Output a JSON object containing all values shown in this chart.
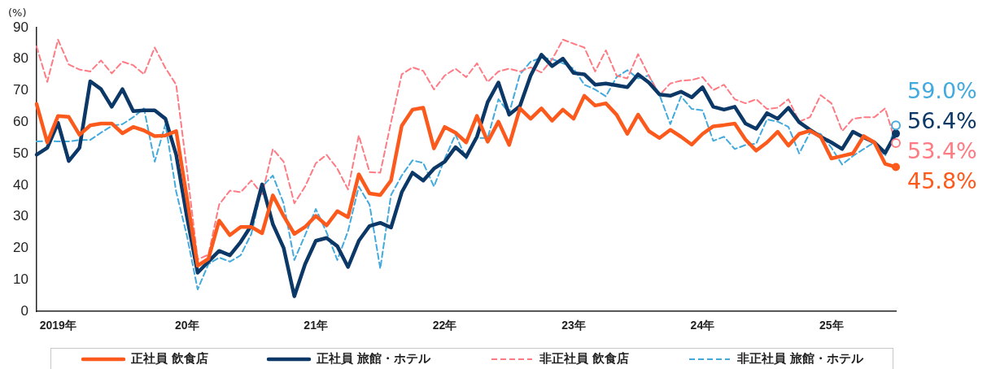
{
  "chart_data": {
    "type": "line",
    "ylabel": "(%)",
    "categories": [
      null,
      null,
      "2019年",
      null,
      null,
      null,
      null,
      null,
      null,
      null,
      null,
      null,
      null,
      null,
      "20年",
      null,
      null,
      null,
      null,
      null,
      null,
      null,
      null,
      null,
      null,
      null,
      "21年",
      null,
      null,
      null,
      null,
      null,
      null,
      null,
      null,
      null,
      null,
      null,
      "22年",
      null,
      null,
      null,
      null,
      null,
      null,
      null,
      null,
      null,
      null,
      null,
      "23年",
      null,
      null,
      null,
      null,
      null,
      null,
      null,
      null,
      null,
      null,
      null,
      "24年",
      null,
      null,
      null,
      null,
      null,
      null,
      null,
      null,
      null,
      null,
      null,
      "25年",
      null,
      null,
      null,
      null,
      null,
      null
    ],
    "ylim": [
      0,
      90
    ],
    "yticks": [
      0,
      10,
      20,
      30,
      40,
      50,
      60,
      70,
      80,
      90
    ],
    "legend": "bottom",
    "series": [
      {
        "name": "正社員 飲食店",
        "color": "#fc5a1c",
        "line_style": "solid",
        "values": [
          65.8,
          53.6,
          62,
          61.7,
          56,
          59,
          59.6,
          59.6,
          56.5,
          58.5,
          57.4,
          55.6,
          55.8,
          57.2,
          36,
          14.5,
          16.7,
          28.8,
          24.2,
          26.8,
          26.8,
          24.8,
          36.8,
          30.3,
          24.6,
          26.8,
          30.3,
          27.3,
          31.8,
          29.9,
          43.5,
          37.4,
          36.9,
          41.5,
          58.9,
          64,
          64.6,
          51.7,
          58.5,
          56.7,
          53.6,
          62,
          53.8,
          60.2,
          52.8,
          64.4,
          61.1,
          64.4,
          60.5,
          64,
          61.1,
          68.4,
          65.3,
          66,
          62.4,
          56.3,
          62.4,
          57.2,
          55,
          57.6,
          55.4,
          52.9,
          56.3,
          58.7,
          59.1,
          59.6,
          54.5,
          51,
          53.6,
          57,
          52.6,
          56.3,
          57.3,
          55.4,
          48.5,
          49.3,
          50.1,
          55.6,
          53.6,
          46.8,
          45.8
        ],
        "value_labels": [
          null,
          null,
          null,
          null,
          null,
          null,
          null,
          null,
          null,
          null,
          null,
          null,
          null,
          null,
          null,
          null,
          null,
          null,
          null,
          null,
          null,
          null,
          null,
          null,
          null,
          null,
          null,
          null,
          null,
          null,
          null,
          null,
          null,
          null,
          null,
          null,
          null,
          null,
          null,
          null,
          null,
          null,
          null,
          null,
          null,
          null,
          null,
          null,
          null,
          null,
          null,
          null,
          null,
          null,
          null,
          null,
          null,
          null,
          null,
          null,
          null,
          null,
          null,
          null,
          null,
          null,
          null,
          null,
          null,
          null,
          null,
          null,
          null,
          null,
          null,
          null,
          null,
          null,
          null,
          null,
          "45.8%"
        ]
      },
      {
        "name": "正社員 旅館・ホテル",
        "color": "#0b3866",
        "line_style": "solid",
        "values": [
          49.7,
          51.9,
          59.8,
          47.7,
          51.9,
          73,
          70.5,
          64.9,
          70.5,
          63.5,
          63.8,
          63.8,
          61.1,
          49.7,
          30,
          12.3,
          15.8,
          19.2,
          17.8,
          22,
          27.3,
          40.3,
          27.7,
          20.2,
          4.8,
          15,
          22.4,
          23.3,
          20.7,
          14.1,
          22.4,
          27.1,
          28.1,
          26.6,
          37.8,
          44,
          41.5,
          45.3,
          47.5,
          52.1,
          49.1,
          55.4,
          66.4,
          72.6,
          62.4,
          65.1,
          74.8,
          81.4,
          77.8,
          80.2,
          75.6,
          75.2,
          71.9,
          72.3,
          71.7,
          71.1,
          75.2,
          72.6,
          68.8,
          68.4,
          69.7,
          67.9,
          71.1,
          64.9,
          64,
          64.9,
          59.6,
          57.9,
          62.9,
          61.1,
          64.6,
          60,
          57.6,
          55.4,
          53.6,
          51.5,
          57,
          55.2,
          53.6,
          50.3,
          56.4
        ],
        "value_labels": [
          null,
          null,
          null,
          null,
          null,
          null,
          null,
          null,
          null,
          null,
          null,
          null,
          null,
          null,
          null,
          null,
          null,
          null,
          null,
          null,
          null,
          null,
          null,
          null,
          null,
          null,
          null,
          null,
          null,
          null,
          null,
          null,
          null,
          null,
          null,
          null,
          null,
          null,
          null,
          null,
          null,
          null,
          null,
          null,
          null,
          null,
          null,
          null,
          null,
          null,
          null,
          null,
          null,
          null,
          null,
          null,
          null,
          null,
          null,
          null,
          null,
          null,
          null,
          null,
          null,
          null,
          null,
          null,
          null,
          null,
          null,
          null,
          null,
          null,
          null,
          null,
          null,
          null,
          null,
          null,
          "56.4%"
        ]
      },
      {
        "name": "非正社員 飲食店",
        "color": "#ff7b84",
        "line_style": "dashed",
        "values": [
          84,
          72.8,
          86.2,
          78.3,
          76.7,
          76.1,
          79.6,
          75.5,
          79.2,
          78.1,
          75.2,
          83.7,
          77.2,
          71.9,
          45,
          16.5,
          18,
          33.9,
          38.3,
          37.8,
          41.5,
          37.1,
          51.5,
          47.5,
          34.3,
          39.6,
          47,
          49.7,
          45.3,
          38.7,
          55.8,
          44.2,
          44,
          60,
          75.2,
          77.4,
          76.3,
          70.4,
          74.8,
          77,
          74.3,
          78.7,
          72.8,
          76.1,
          77,
          76.1,
          77.4,
          75.8,
          79.9,
          86.2,
          84.9,
          83.7,
          76.1,
          82.8,
          74.8,
          73.9,
          81.6,
          74.8,
          68.6,
          72.3,
          73.2,
          73.4,
          74.3,
          70.2,
          71.9,
          67.3,
          66,
          67.3,
          64.2,
          64.6,
          67.3,
          60.2,
          61.6,
          68.6,
          66,
          57.2,
          61.1,
          61.6,
          61.6,
          64.4,
          53.4
        ],
        "value_labels": [
          null,
          null,
          null,
          null,
          null,
          null,
          null,
          null,
          null,
          null,
          null,
          null,
          null,
          null,
          null,
          null,
          null,
          null,
          null,
          null,
          null,
          null,
          null,
          null,
          null,
          null,
          null,
          null,
          null,
          null,
          null,
          null,
          null,
          null,
          null,
          null,
          null,
          null,
          null,
          null,
          null,
          null,
          null,
          null,
          null,
          null,
          null,
          null,
          null,
          null,
          null,
          null,
          null,
          null,
          null,
          null,
          null,
          null,
          null,
          null,
          null,
          null,
          null,
          null,
          null,
          null,
          null,
          null,
          null,
          null,
          null,
          null,
          null,
          null,
          null,
          null,
          null,
          null,
          null,
          null,
          "53.4%"
        ]
      },
      {
        "name": "非正社員 旅館・ホテル",
        "color": "#43aadd",
        "line_style": "dashed",
        "values": [
          53.9,
          54.1,
          53.9,
          53.9,
          54.4,
          54.4,
          56.7,
          58.8,
          59.4,
          61.6,
          64.4,
          47.5,
          59.4,
          38,
          24,
          7,
          15,
          17.1,
          15.8,
          17.8,
          24.6,
          39.6,
          43.1,
          34.3,
          16.3,
          24.2,
          32.5,
          25.1,
          16.3,
          25.5,
          39.6,
          33.9,
          13.6,
          36.9,
          43.1,
          47.9,
          47.1,
          39.6,
          48.4,
          56.1,
          48.4,
          55,
          55,
          67.3,
          62.9,
          75.2,
          79.2,
          80.5,
          80,
          78.7,
          77,
          71.9,
          70.4,
          68.2,
          74.3,
          76.5,
          73.9,
          74.8,
          68.6,
          59.4,
          68.2,
          64.2,
          63.8,
          54.1,
          55.4,
          51.5,
          52.8,
          53.2,
          60.9,
          60.2,
          58.5,
          50.1,
          56.7,
          56.3,
          51.9,
          46.6,
          49.3,
          51.5,
          53.6,
          49.3,
          59.0
        ],
        "value_labels": [
          null,
          null,
          null,
          null,
          null,
          null,
          null,
          null,
          null,
          null,
          null,
          null,
          null,
          null,
          null,
          null,
          null,
          null,
          null,
          null,
          null,
          null,
          null,
          null,
          null,
          null,
          null,
          null,
          null,
          null,
          null,
          null,
          null,
          null,
          null,
          null,
          null,
          null,
          null,
          null,
          null,
          null,
          null,
          null,
          null,
          null,
          null,
          null,
          null,
          null,
          null,
          null,
          null,
          null,
          null,
          null,
          null,
          null,
          null,
          null,
          null,
          null,
          null,
          null,
          null,
          null,
          null,
          null,
          null,
          null,
          null,
          null,
          null,
          null,
          null,
          null,
          null,
          null,
          null,
          null,
          "59.0%"
        ]
      }
    ]
  }
}
